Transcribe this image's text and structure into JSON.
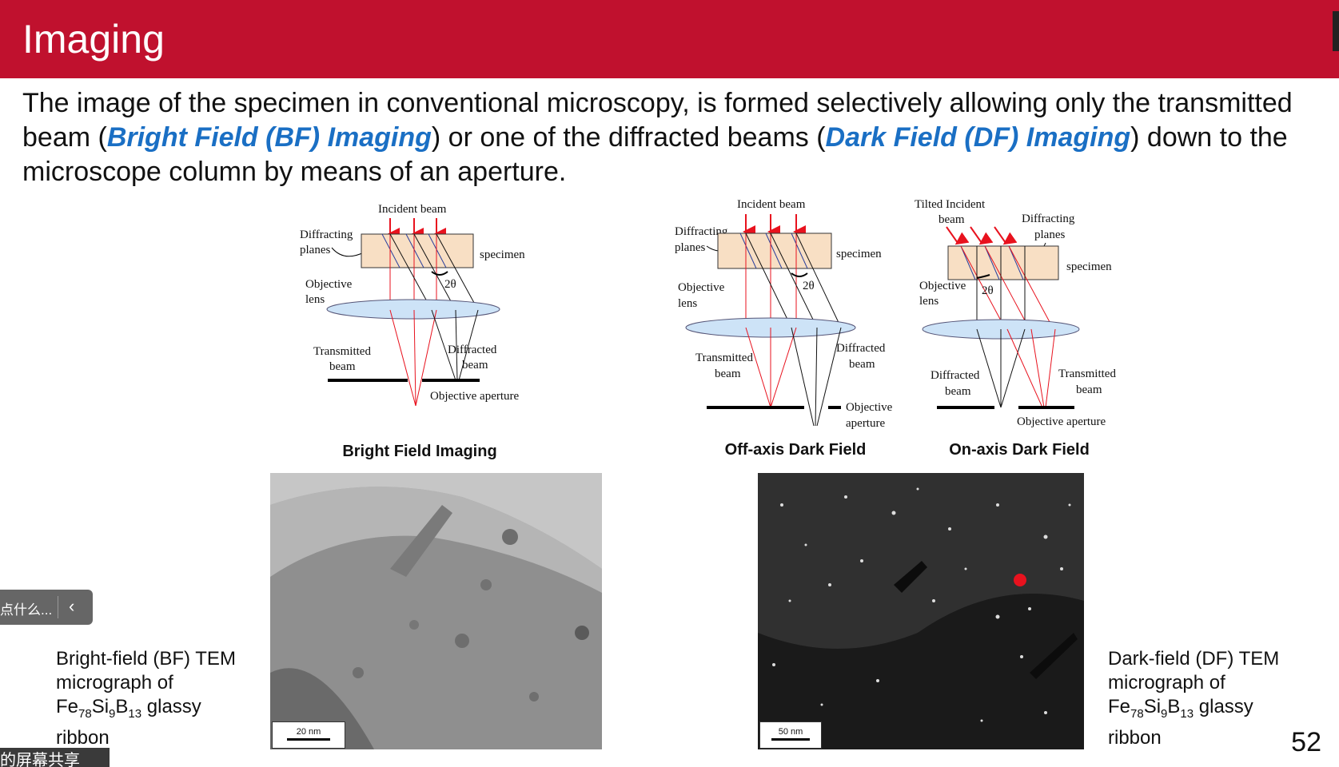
{
  "header": {
    "title": "Imaging"
  },
  "intro": {
    "part1": "The image of the specimen in conventional microscopy, is formed selectively allowing only the transmitted beam (",
    "bf": "Bright Field (BF) Imaging",
    "part2": ") or one of the diffracted beams (",
    "df": "Dark Field (DF) Imaging",
    "part3": ") down to the microscope column by means of an aperture."
  },
  "diagrams": {
    "bf": {
      "incident": "Incident beam",
      "diffracting1": "Diffracting",
      "diffracting2": "planes",
      "specimen": "specimen",
      "objective1": "Objective",
      "objective2": "lens",
      "two_theta": "2θ",
      "transmitted1": "Transmitted",
      "transmitted2": "beam",
      "diffracted1": "Diffracted",
      "diffracted2": "beam",
      "aperture": "Objective aperture"
    },
    "offaxis": {
      "incident": "Incident beam",
      "diffracting1": "Diffracting",
      "diffracting2": "planes",
      "specimen": "specimen",
      "objective1": "Objective",
      "objective2": "lens",
      "two_theta": "2θ",
      "transmitted1": "Transmitted",
      "transmitted2": "beam",
      "diffracted1": "Diffracted",
      "diffracted2": "beam",
      "aperture1": "Objective",
      "aperture2": "aperture"
    },
    "onaxis": {
      "incident1": "Tilted Incident",
      "incident2": "beam",
      "diffracting1": "Diffracting",
      "diffracting2": "planes",
      "specimen": "specimen",
      "objective1": "Objective",
      "objective2": "lens",
      "two_theta": "2θ",
      "diffracted1": "Diffracted",
      "diffracted2": "beam",
      "transmitted1": "Transmitted",
      "transmitted2": "beam",
      "aperture": "Objective aperture"
    }
  },
  "captions": {
    "bf": "Bright Field Imaging",
    "offaxis": "Off-axis Dark Field",
    "onaxis": "On-axis Dark Field"
  },
  "micrographs": {
    "bf_scale": "20 nm",
    "df_scale": "50 nm"
  },
  "descriptions": {
    "bf_line1": "Bright-field (BF) TEM",
    "df_line1": "Dark-field (DF) TEM",
    "line2": "micrograph of",
    "fe": "Fe",
    "sub1": "78",
    "si": "Si",
    "sub2": "9",
    "b": "B",
    "sub3": "13",
    "glassy": " glassy",
    "line4": "ribbon"
  },
  "page_number": "52",
  "overlay": {
    "toolbar_text": "点什么...",
    "share_text": "的屏幕共享"
  },
  "colors": {
    "header": "#c0112e",
    "highlight": "#1a6fc4",
    "beam": "#e8121e",
    "specimen_fill": "#f8dfc4",
    "lens_fill": "#cde3f7"
  }
}
